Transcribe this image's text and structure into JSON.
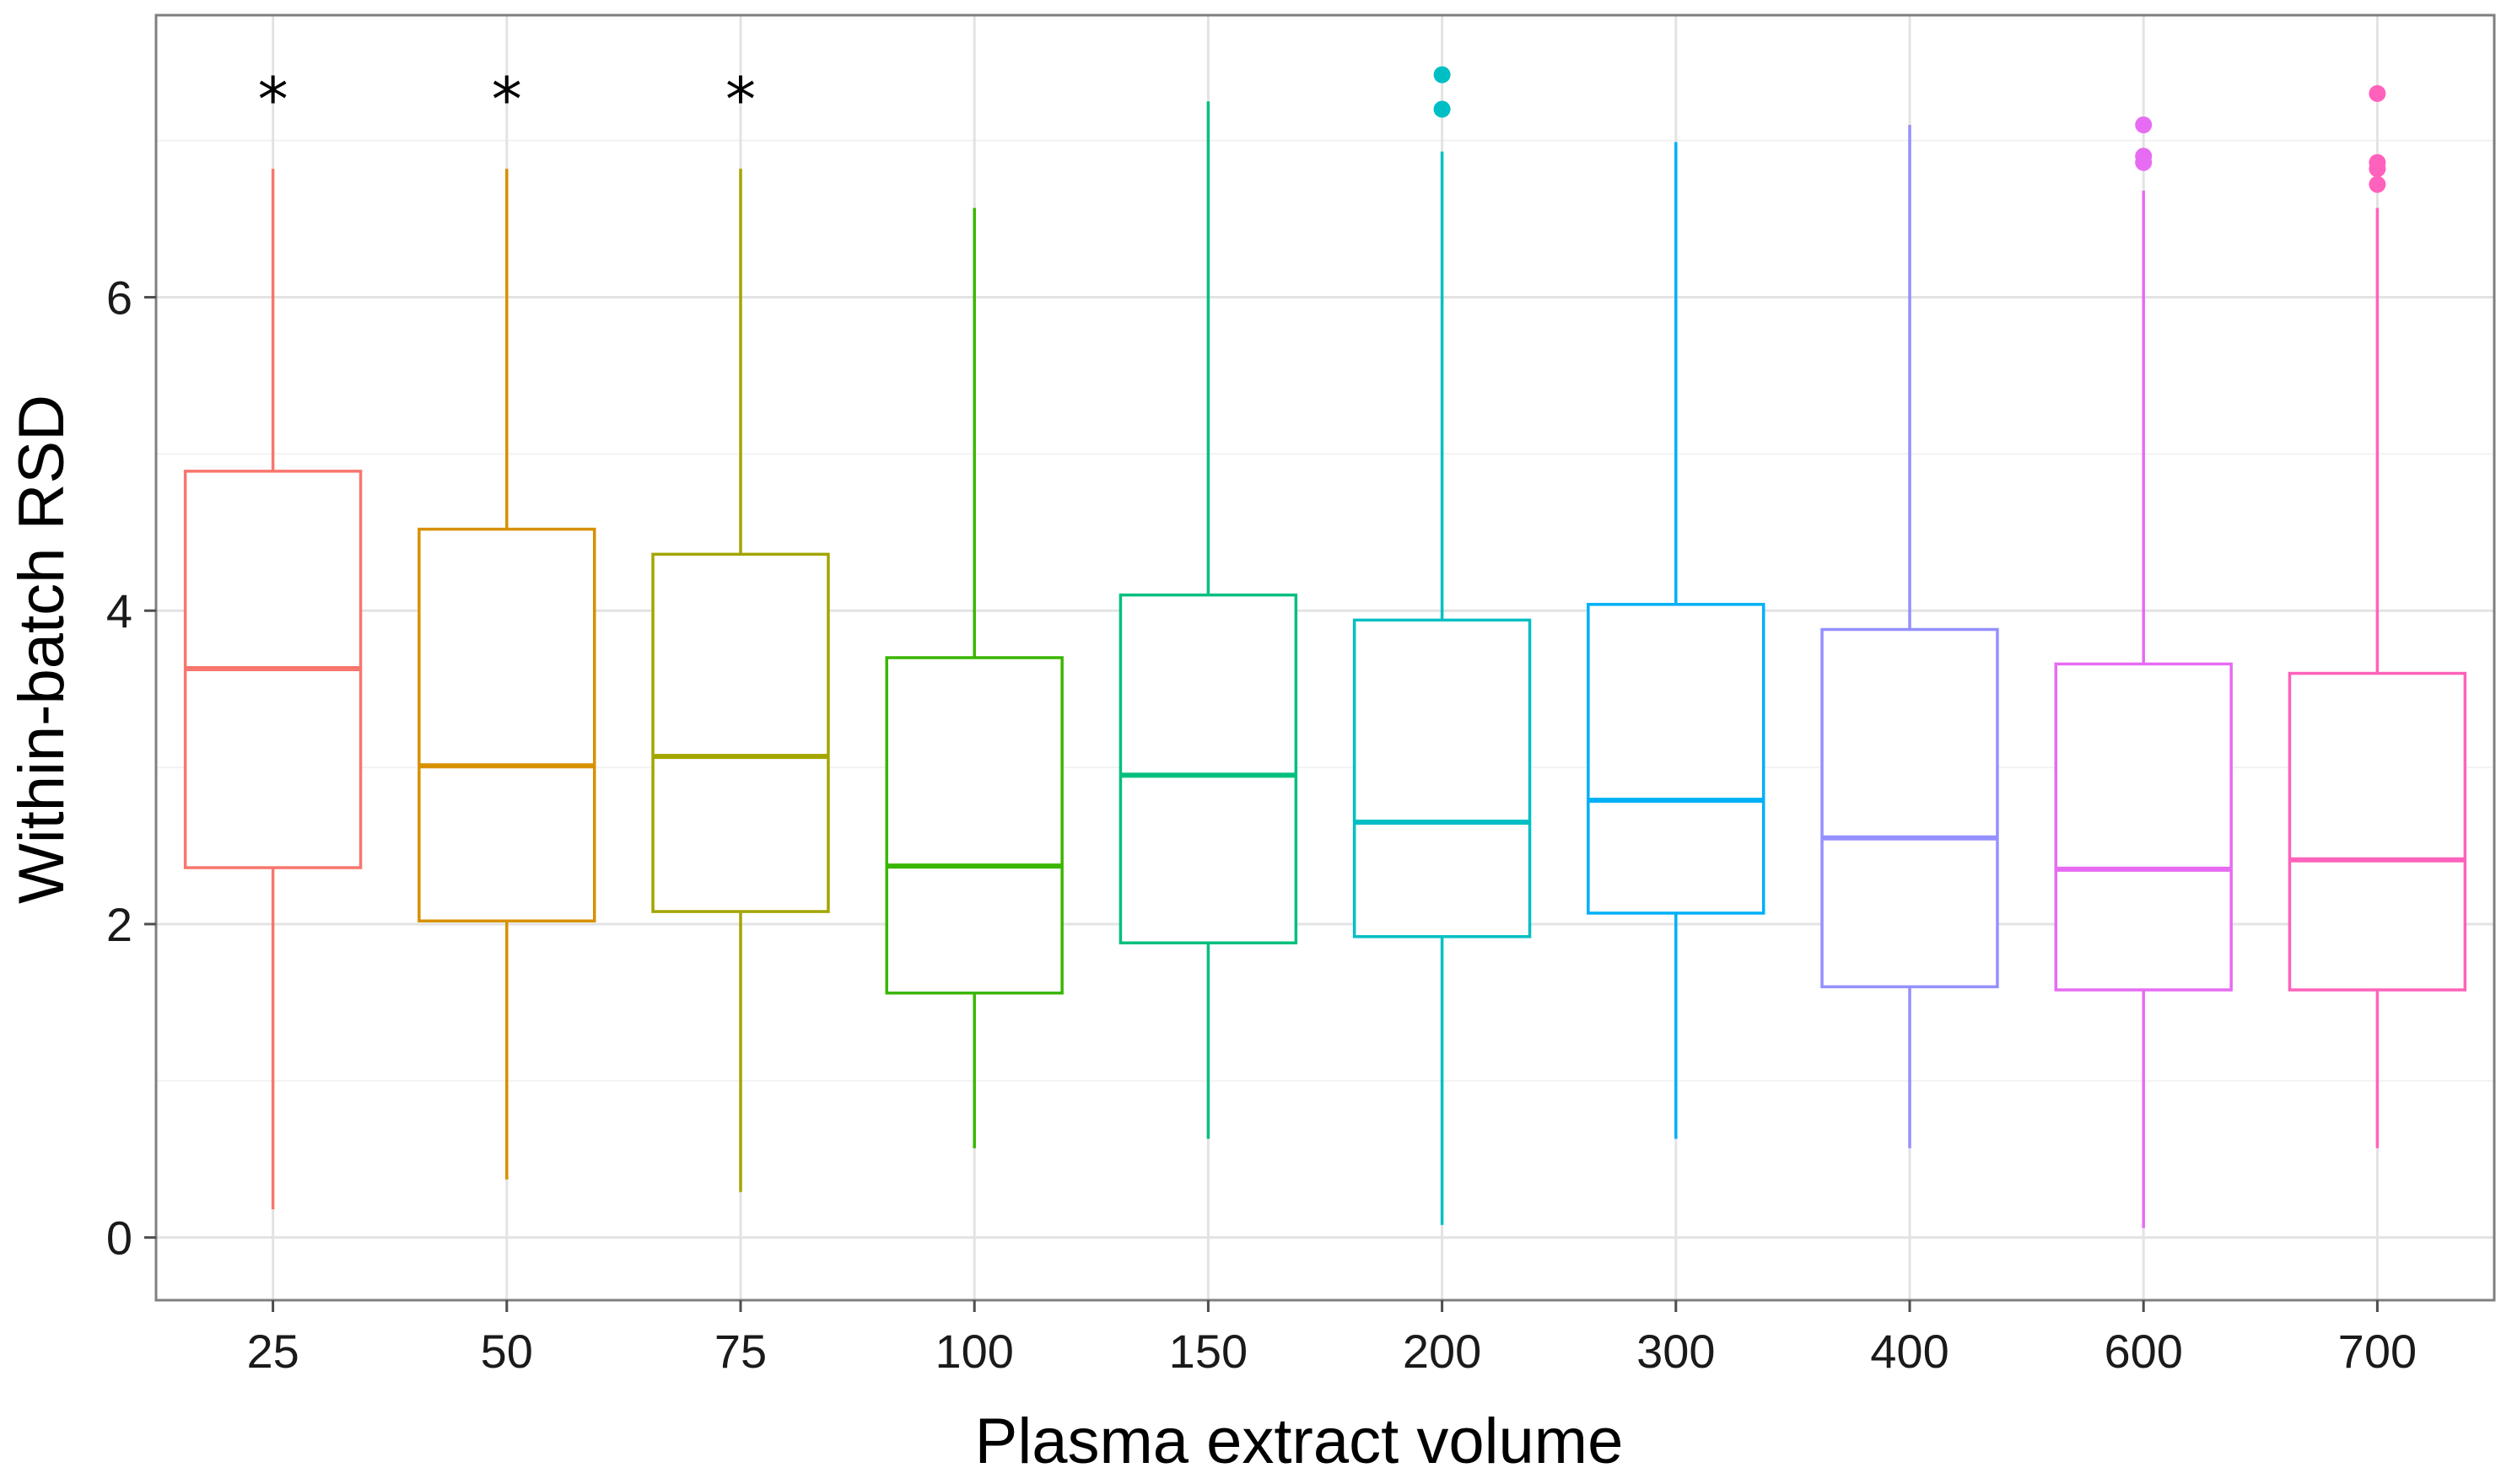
{
  "chart_data": {
    "type": "boxplot",
    "title": "",
    "xlabel": "Plasma extract volume",
    "ylabel": "Within-batch RSD",
    "ylim": [
      -0.4,
      7.8
    ],
    "yticks": [
      0,
      2,
      4,
      6
    ],
    "ytick_labels": [
      "0",
      "2",
      "4",
      "6"
    ],
    "grid": true,
    "legend": "none",
    "categories": [
      "25",
      "50",
      "75",
      "100",
      "150",
      "200",
      "300",
      "400",
      "600",
      "700"
    ],
    "boxes": [
      {
        "label": "25",
        "color": "#F8766D",
        "whisker_low": 0.18,
        "q1": 2.36,
        "median": 3.63,
        "q3": 4.89,
        "whisker_high": 6.82,
        "outliers": [],
        "significant": true
      },
      {
        "label": "50",
        "color": "#D89000",
        "whisker_low": 0.37,
        "q1": 2.02,
        "median": 3.01,
        "q3": 4.52,
        "whisker_high": 6.82,
        "outliers": [],
        "significant": true
      },
      {
        "label": "75",
        "color": "#A3A500",
        "whisker_low": 0.29,
        "q1": 2.08,
        "median": 3.07,
        "q3": 4.36,
        "whisker_high": 6.82,
        "outliers": [],
        "significant": true
      },
      {
        "label": "100",
        "color": "#39B600",
        "whisker_low": 0.57,
        "q1": 1.56,
        "median": 2.37,
        "q3": 3.7,
        "whisker_high": 6.57,
        "outliers": [],
        "significant": false
      },
      {
        "label": "150",
        "color": "#00BF7D",
        "whisker_low": 0.63,
        "q1": 1.88,
        "median": 2.95,
        "q3": 4.1,
        "whisker_high": 7.25,
        "outliers": [],
        "significant": false
      },
      {
        "label": "200",
        "color": "#00BFC4",
        "whisker_low": 0.08,
        "q1": 1.92,
        "median": 2.65,
        "q3": 3.94,
        "whisker_high": 6.93,
        "outliers": [
          7.2,
          7.42
        ],
        "significant": false
      },
      {
        "label": "300",
        "color": "#00B0F6",
        "whisker_low": 0.63,
        "q1": 2.07,
        "median": 2.79,
        "q3": 4.04,
        "whisker_high": 6.99,
        "outliers": [],
        "significant": false
      },
      {
        "label": "400",
        "color": "#9590FF",
        "whisker_low": 0.57,
        "q1": 1.6,
        "median": 2.55,
        "q3": 3.88,
        "whisker_high": 7.1,
        "outliers": [],
        "significant": false
      },
      {
        "label": "600",
        "color": "#E76BF3",
        "whisker_low": 0.06,
        "q1": 1.58,
        "median": 2.35,
        "q3": 3.66,
        "whisker_high": 6.68,
        "outliers": [
          6.86,
          6.9,
          7.1
        ],
        "significant": false
      },
      {
        "label": "700",
        "color": "#FF62BC",
        "whisker_low": 0.57,
        "q1": 1.58,
        "median": 2.41,
        "q3": 3.6,
        "whisker_high": 6.57,
        "outliers": [
          6.72,
          6.82,
          6.86,
          7.3
        ],
        "significant": false
      }
    ],
    "significance_marker": "*"
  }
}
